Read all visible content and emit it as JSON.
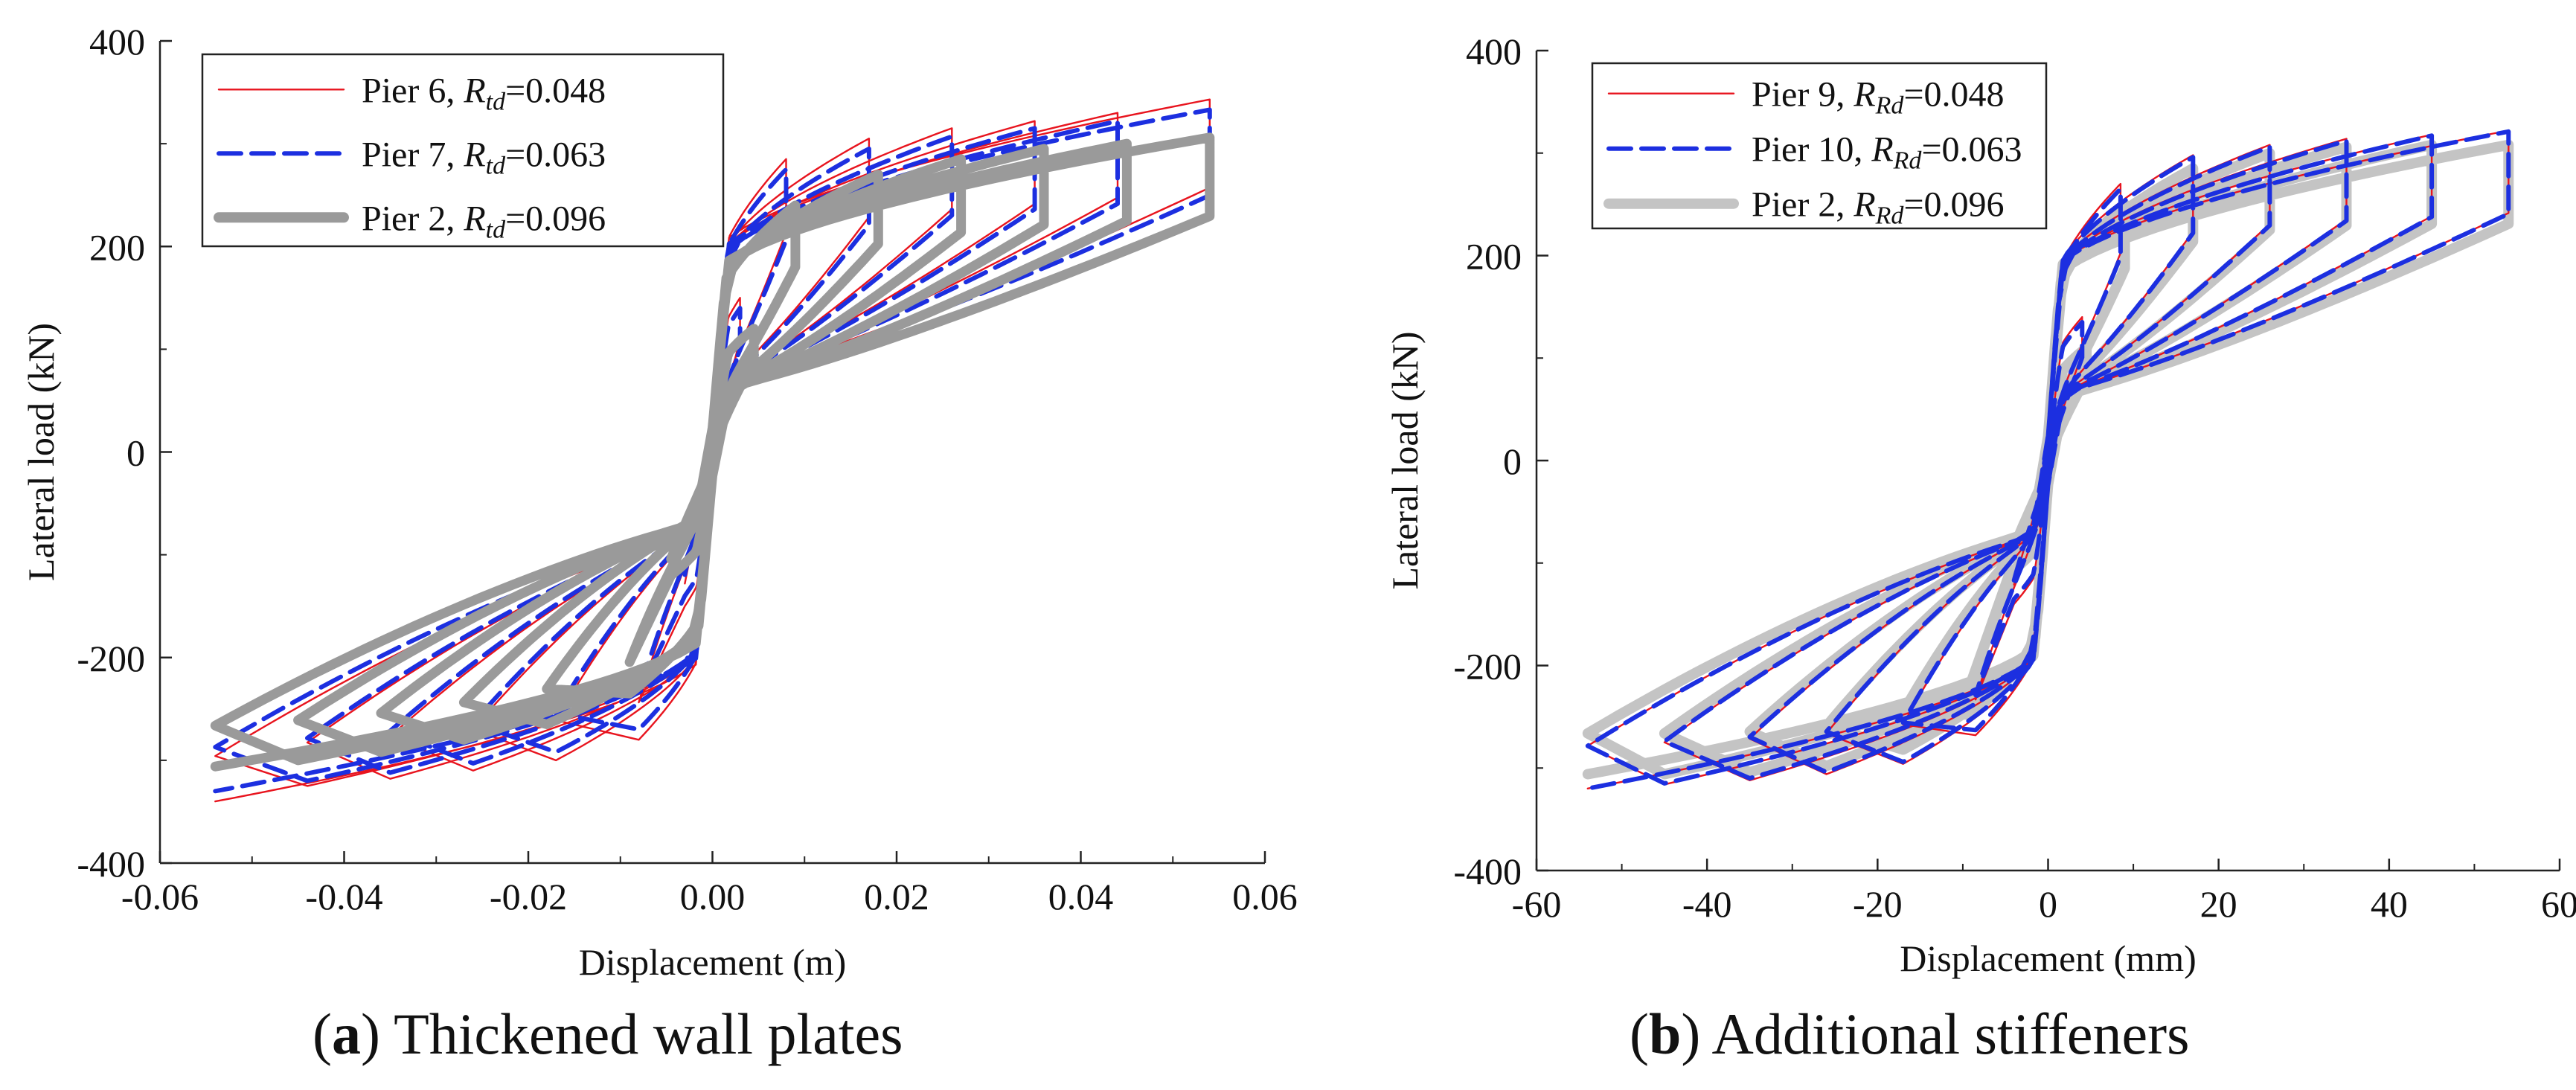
{
  "captions": [
    {
      "letter": "a",
      "text": "Thickened wall plates"
    },
    {
      "letter": "b",
      "text": "Additional stiffeners"
    }
  ],
  "chart_data": [
    {
      "type": "line",
      "panel": "a",
      "title": "",
      "xlabel": "Displacement (m)",
      "ylabel": "Lateral load (kN)",
      "xlim": [
        -0.06,
        0.06
      ],
      "ylim": [
        -400,
        400
      ],
      "xticks": [
        -0.06,
        -0.04,
        -0.02,
        0.0,
        0.02,
        0.04,
        0.06
      ],
      "xtick_labels": [
        "-0.06",
        "-0.04",
        "-0.02",
        "0.00",
        "0.02",
        "0.04",
        "0.06"
      ],
      "yticks": [
        -400,
        -200,
        0,
        200,
        400
      ],
      "ytick_labels": [
        "-400",
        "-200",
        "0",
        "200",
        "400"
      ],
      "grid": false,
      "legend_position": "top-left",
      "legend": [
        {
          "label": "Pier 6, ",
          "sym": "R",
          "sub": "td",
          "value": "=0.048",
          "color": "#e8141e",
          "style": "solid-thin"
        },
        {
          "label": "Pier 7, ",
          "sym": "R",
          "sub": "td",
          "value": "=0.063",
          "color": "#1c2fe0",
          "style": "dashed"
        },
        {
          "label": "Pier 2, ",
          "sym": "R",
          "sub": "td",
          "value": "=0.096",
          "color": "#9a9a9a",
          "style": "solid-thick"
        }
      ],
      "series": [
        {
          "name": "Pier 6",
          "color": "#e8141e",
          "width": 2.4,
          "dash": "",
          "amplitudes": [
            0.003,
            0.008,
            0.017,
            0.026,
            0.035,
            0.044,
            0.054
          ],
          "peak_pos": [
            150,
            285,
            305,
            315,
            322,
            330,
            343
          ],
          "peak_neg": [
            -150,
            -280,
            -300,
            -310,
            -318,
            -325,
            -340
          ]
        },
        {
          "name": "Pier 7",
          "color": "#1c2fe0",
          "width": 6,
          "dash": "30,14",
          "amplitudes": [
            0.003,
            0.008,
            0.017,
            0.026,
            0.035,
            0.044,
            0.054
          ],
          "peak_pos": [
            140,
            275,
            295,
            307,
            315,
            322,
            333
          ],
          "peak_neg": [
            -140,
            -270,
            -292,
            -303,
            -312,
            -320,
            -330
          ]
        },
        {
          "name": "Pier 2",
          "color": "#9a9a9a",
          "width": 13,
          "dash": "",
          "amplitudes": [
            0.0045,
            0.009,
            0.018,
            0.027,
            0.036,
            0.045,
            0.054
          ],
          "peak_pos": [
            120,
            240,
            270,
            285,
            295,
            300,
            306
          ],
          "peak_neg": [
            -120,
            -235,
            -265,
            -280,
            -292,
            -300,
            -306
          ]
        }
      ]
    },
    {
      "type": "line",
      "panel": "b",
      "title": "",
      "xlabel": "Displacement (mm)",
      "ylabel": "Lateral load (kN)",
      "xlim": [
        -60,
        60
      ],
      "ylim": [
        -400,
        400
      ],
      "xticks": [
        -60,
        -40,
        -20,
        0,
        20,
        40,
        60
      ],
      "xtick_labels": [
        "-60",
        "-40",
        "-20",
        "0",
        "20",
        "40",
        "60"
      ],
      "yticks": [
        -400,
        -200,
        0,
        200,
        400
      ],
      "ytick_labels": [
        "-400",
        "-200",
        "0",
        "200",
        "400"
      ],
      "grid": false,
      "legend_position": "top-left",
      "legend": [
        {
          "label": "Pier 9, ",
          "sym": "R",
          "sub": "Rd",
          "value": "=0.048",
          "color": "#e8141e",
          "style": "solid-thin"
        },
        {
          "label": "Pier 10, ",
          "sym": "R",
          "sub": "Rd",
          "value": "=0.063",
          "color": "#1c2fe0",
          "style": "dashed"
        },
        {
          "label": "Pier 2, ",
          "sym": "R",
          "sub": "Rd",
          "value": "=0.096",
          "color": "#c4c4c4",
          "style": "solid-thick"
        }
      ],
      "series": [
        {
          "name": "Pier 2",
          "color": "#c4c4c4",
          "width": 14,
          "dash": "",
          "amplitudes": [
            4.5,
            9,
            17,
            26,
            35,
            45,
            54
          ],
          "peak_pos": [
            110,
            250,
            285,
            300,
            306,
            308,
            308
          ],
          "peak_neg": [
            -110,
            -248,
            -282,
            -298,
            -304,
            -306,
            -306
          ]
        },
        {
          "name": "Pier 9",
          "color": "#e8141e",
          "width": 2.4,
          "dash": "",
          "amplitudes": [
            4,
            8.5,
            17,
            26,
            35,
            45,
            54
          ],
          "peak_pos": [
            140,
            270,
            298,
            308,
            314,
            318,
            322
          ],
          "peak_neg": [
            -140,
            -268,
            -296,
            -306,
            -312,
            -316,
            -320
          ]
        },
        {
          "name": "Pier 10",
          "color": "#1c2fe0",
          "width": 6,
          "dash": "30,14",
          "amplitudes": [
            4,
            8.5,
            17,
            26,
            35,
            45,
            54
          ],
          "peak_pos": [
            135,
            265,
            296,
            306,
            312,
            317,
            321
          ],
          "peak_neg": [
            -135,
            -263,
            -294,
            -304,
            -310,
            -315,
            -320
          ]
        }
      ]
    }
  ]
}
